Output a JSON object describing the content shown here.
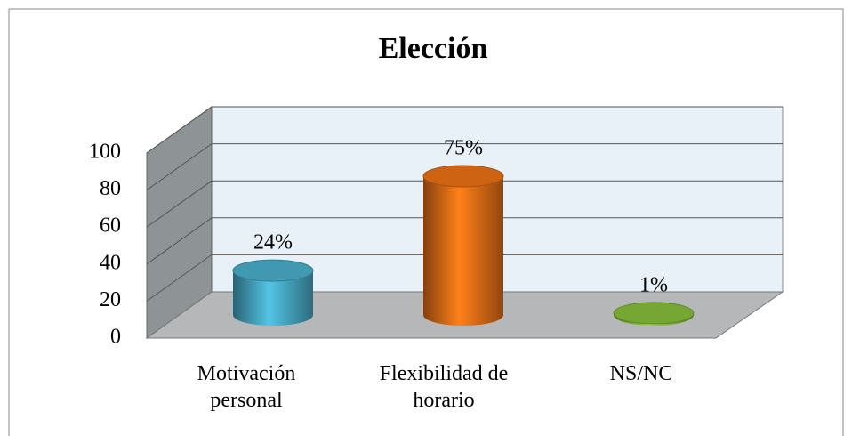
{
  "chart_data": {
    "type": "bar3d",
    "title": "Elección",
    "categories": [
      "Motivación personal",
      "Flexibilidad de horario",
      "NS/NC"
    ],
    "values": [
      24,
      75,
      1
    ],
    "value_labels": [
      "24%",
      "75%",
      "1%"
    ],
    "colors": [
      "#4bb3d0",
      "#f27417",
      "#8cc43c"
    ],
    "ylim": [
      0,
      100
    ],
    "yticks": [
      0,
      20,
      40,
      60,
      80,
      100
    ],
    "grid": true
  }
}
